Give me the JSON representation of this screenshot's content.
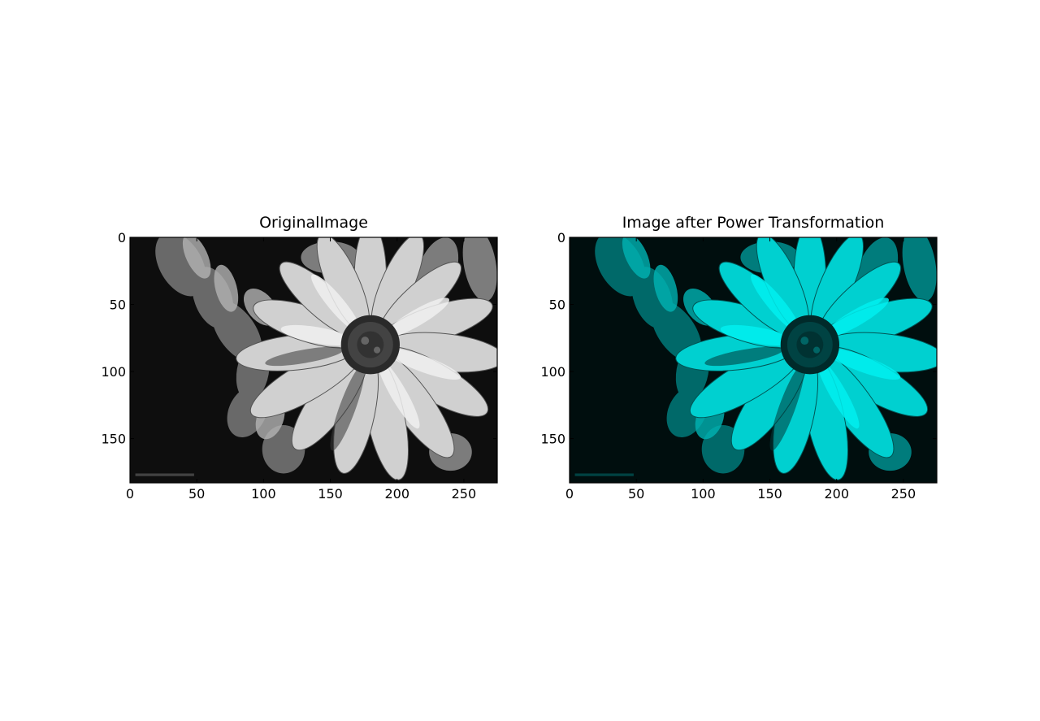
{
  "chart_data": [
    {
      "type": "image",
      "title": "OriginalImage",
      "colormap": "gray",
      "tint": "#ffffff",
      "xlim": [
        0,
        275
      ],
      "ylim": [
        183,
        0
      ],
      "xticks": [
        0,
        50,
        100,
        150,
        200,
        250
      ],
      "yticks": [
        0,
        50,
        100,
        150
      ],
      "xticklabels": [
        "0",
        "50",
        "100",
        "150",
        "200",
        "250"
      ],
      "yticklabels": [
        "0",
        "50",
        "100",
        "150"
      ],
      "grid": false
    },
    {
      "type": "image",
      "title": "Image after Power Transformation",
      "colormap": "cyan",
      "tint": "#00ffff",
      "xlim": [
        0,
        275
      ],
      "ylim": [
        183,
        0
      ],
      "xticks": [
        0,
        50,
        100,
        150,
        200,
        250
      ],
      "yticks": [
        0,
        50,
        100,
        150
      ],
      "xticklabels": [
        "0",
        "50",
        "100",
        "150",
        "200",
        "250"
      ],
      "yticklabels": [
        "0",
        "50",
        "100",
        "150"
      ],
      "grid": false
    }
  ]
}
